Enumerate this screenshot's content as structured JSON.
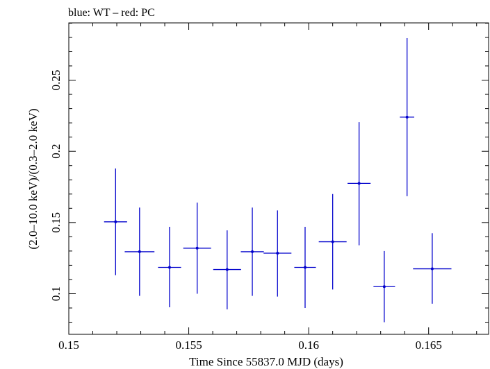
{
  "chart_data": {
    "type": "scatter",
    "title": "blue: WT – red: PC",
    "xlabel": "Time Since 55837.0 MJD (days)",
    "ylabel": "(2.0–10.0 keV)/(0.3–2.0 keV)",
    "xlim": [
      0.15,
      0.1675
    ],
    "ylim": [
      0.0715,
      0.2902
    ],
    "x_ticks": [
      0.15,
      0.155,
      0.16,
      0.165
    ],
    "x_tick_labels": [
      "0.15",
      "0.155",
      "0.16",
      "0.165"
    ],
    "y_ticks": [
      0.1,
      0.15,
      0.2,
      0.25
    ],
    "y_tick_labels": [
      "0.1",
      "0.15",
      "0.2",
      "0.25"
    ],
    "grid": false,
    "color": "#0000cc",
    "series": [
      {
        "points": [
          {
            "x": 0.15195,
            "y": 0.1505,
            "xerr": 0.00048,
            "ylo": 0.113,
            "yhi": 0.188
          },
          {
            "x": 0.15295,
            "y": 0.1295,
            "xerr": 0.00062,
            "ylo": 0.0985,
            "yhi": 0.1605
          },
          {
            "x": 0.1542,
            "y": 0.1185,
            "xerr": 0.00048,
            "ylo": 0.0905,
            "yhi": 0.147
          },
          {
            "x": 0.15535,
            "y": 0.132,
            "xerr": 0.00058,
            "ylo": 0.1,
            "yhi": 0.164
          },
          {
            "x": 0.1566,
            "y": 0.117,
            "xerr": 0.00058,
            "ylo": 0.089,
            "yhi": 0.1445
          },
          {
            "x": 0.15765,
            "y": 0.1295,
            "xerr": 0.00048,
            "ylo": 0.0985,
            "yhi": 0.1605
          },
          {
            "x": 0.1587,
            "y": 0.1285,
            "xerr": 0.00058,
            "ylo": 0.098,
            "yhi": 0.1585
          },
          {
            "x": 0.15985,
            "y": 0.1185,
            "xerr": 0.00045,
            "ylo": 0.09,
            "yhi": 0.147
          },
          {
            "x": 0.161,
            "y": 0.1365,
            "xerr": 0.00058,
            "ylo": 0.103,
            "yhi": 0.17
          },
          {
            "x": 0.1621,
            "y": 0.1775,
            "xerr": 0.00048,
            "ylo": 0.134,
            "yhi": 0.2205
          },
          {
            "x": 0.16315,
            "y": 0.105,
            "xerr": 0.00045,
            "ylo": 0.08,
            "yhi": 0.13
          },
          {
            "x": 0.1641,
            "y": 0.224,
            "xerr": 0.0003,
            "ylo": 0.1685,
            "yhi": 0.2795
          },
          {
            "x": 0.16515,
            "y": 0.1175,
            "xerr": 0.0008,
            "ylo": 0.093,
            "yhi": 0.1425
          }
        ]
      }
    ]
  }
}
